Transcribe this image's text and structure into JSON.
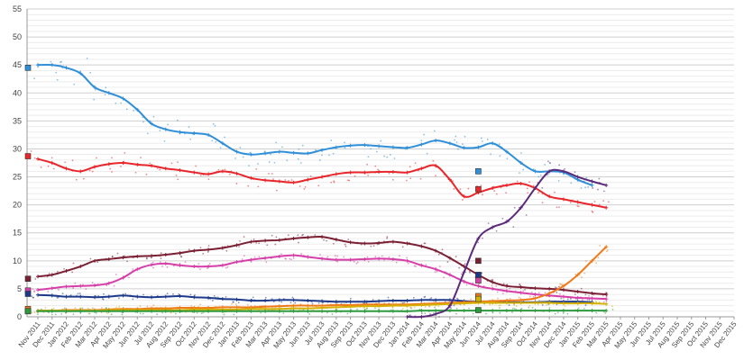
{
  "chart_data": {
    "type": "line",
    "y_ticks": [
      "0",
      "5",
      "10",
      "15",
      "20",
      "25",
      "30",
      "35",
      "40",
      "45",
      "50",
      "55"
    ],
    "ylim": [
      0,
      55
    ],
    "grid": true,
    "x_ticks": [
      "Nov 2011",
      "Dec 2011",
      "Jan 2012",
      "Feb 2012",
      "Mar 2012",
      "Apr 2012",
      "May 2012",
      "Jun 2012",
      "Jul 2012",
      "Aug 2012",
      "Sep 2012",
      "Oct 2012",
      "Nov 2012",
      "Dec 2012",
      "Jan 2013",
      "Feb 2013",
      "Mar 2013",
      "Apr 2013",
      "May 2013",
      "Jun 2013",
      "Jul 2013",
      "Aug 2013",
      "Sep 2013",
      "Oct 2013",
      "Nov 2013",
      "Dec 2013",
      "Jan 2014",
      "Feb 2014",
      "Mar 2014",
      "Apr 2014",
      "May 2014",
      "Jun 2014",
      "Jul 2014",
      "Aug 2014",
      "Sep 2014",
      "Oct 2014",
      "Nov 2014",
      "Dec 2014",
      "Jan 2015",
      "Feb 2015",
      "Mar 2015",
      "Apr 2015",
      "May 2015",
      "Jun 2015",
      "Jul 2015",
      "Aug 2015",
      "Sep 2015",
      "Oct 2015",
      "Nov 2015",
      "Dec 2015"
    ],
    "x_start_index": 0,
    "series": [
      {
        "color": "#2f8fd8",
        "values": [
          45,
          45,
          44.5,
          43.5,
          41,
          40,
          39,
          37,
          34.5,
          33.5,
          33,
          32.8,
          32.5,
          31,
          29.5,
          29,
          29.2,
          29.5,
          29.3,
          29.2,
          29.8,
          30.3,
          30.6,
          30.7,
          30.5,
          30.3,
          30.2,
          30.8,
          31.5,
          31,
          30.2,
          30.3,
          31,
          29.5,
          27.5,
          26,
          26,
          25.8,
          24.5,
          23.5
        ],
        "marker": 44.5,
        "marker2": [
          31,
          26
        ]
      },
      {
        "color": "#e8262b",
        "values": [
          28.2,
          27.5,
          26.5,
          26,
          26.8,
          27.3,
          27.5,
          27.2,
          27,
          26.5,
          26.2,
          25.8,
          25.5,
          26,
          25.6,
          24.8,
          24.4,
          24.2,
          24,
          24.5,
          25,
          25.5,
          25.8,
          25.8,
          25.9,
          25.9,
          25.8,
          26.5,
          27,
          24.5,
          21.5,
          22.2,
          23,
          23.5,
          23.8,
          23,
          21.5,
          21,
          20.5,
          20,
          19.5
        ],
        "marker": 28.7,
        "marker2": [
          31,
          22.8
        ]
      },
      {
        "color": "#7b1f34",
        "values": [
          7.2,
          7.5,
          8.2,
          9,
          10,
          10.3,
          10.6,
          10.8,
          10.9,
          11.1,
          11.4,
          11.8,
          12,
          12.3,
          12.8,
          13.4,
          13.6,
          13.7,
          14,
          14.2,
          14.3,
          13.8,
          13.3,
          13.1,
          13.2,
          13.4,
          13.1,
          12.6,
          11.8,
          10.5,
          9,
          7.5,
          6.2,
          5.5,
          5.3,
          5.1,
          5,
          4.8,
          4.5,
          4.2,
          4
        ],
        "marker": 6.8,
        "marker2": [
          31,
          10
        ]
      },
      {
        "color": "#d63fa8",
        "values": [
          4.8,
          5.1,
          5.4,
          5.5,
          5.6,
          6,
          7,
          8.5,
          9.3,
          9.5,
          9.2,
          9,
          9,
          9.2,
          9.8,
          10.2,
          10.5,
          10.8,
          11,
          10.7,
          10.4,
          10.2,
          10.2,
          10.3,
          10.4,
          10.3,
          10,
          9.2,
          8.5,
          7.5,
          6.3,
          5.5,
          5,
          4.6,
          4.3,
          4,
          3.8,
          3.6,
          3.4,
          3.3,
          3.2
        ],
        "marker": 4.7,
        "marker2": [
          31,
          6.5
        ]
      },
      {
        "color": "#1d3a8a",
        "values": [
          3.9,
          3.8,
          3.6,
          3.6,
          3.5,
          3.6,
          3.8,
          3.6,
          3.5,
          3.6,
          3.7,
          3.5,
          3.4,
          3.2,
          3.1,
          2.9,
          2.9,
          3,
          3,
          2.9,
          2.8,
          2.7,
          2.7,
          2.7,
          2.8,
          2.9,
          2.9,
          3,
          3,
          3,
          2.8,
          2.7,
          2.6,
          2.6,
          2.6,
          2.6,
          2.7,
          2.7,
          2.7,
          2.6
        ],
        "marker": 4.1,
        "marker2": [
          31,
          7.5
        ]
      },
      {
        "color": "#f07a1a",
        "values": [
          1.1,
          1.1,
          1.2,
          1.2,
          1.2,
          1.3,
          1.4,
          1.4,
          1.5,
          1.5,
          1.6,
          1.6,
          1.6,
          1.7,
          1.7,
          1.7,
          1.8,
          1.9,
          2,
          2,
          2,
          2.1,
          2.1,
          2.2,
          2.2,
          2.2,
          2.2,
          2.3,
          2.4,
          2.5,
          2.6,
          2.7,
          2.8,
          2.9,
          3,
          3.3,
          4.2,
          5.5,
          7.5,
          10,
          12.5
        ],
        "marker": 1.4,
        "marker2": [
          31,
          3.7
        ]
      },
      {
        "color": "#d4b000",
        "values": [
          1.1,
          1.1,
          1.1,
          1.1,
          1.1,
          1.2,
          1.2,
          1.2,
          1.2,
          1.2,
          1.2,
          1.3,
          1.3,
          1.3,
          1.3,
          1.4,
          1.4,
          1.4,
          1.5,
          1.5,
          1.6,
          1.7,
          1.8,
          1.9,
          1.9,
          2,
          2,
          2.1,
          2.2,
          2.3,
          2.4,
          2.5,
          2.5,
          2.5,
          2.5,
          2.5,
          2.5,
          2.4,
          2.4,
          2.4,
          2.3
        ],
        "marker": 1.0,
        "marker2": [
          31,
          3.2
        ]
      },
      {
        "color": "#2e9a3e",
        "values": [
          1.0,
          1.0,
          1.0,
          1.0,
          1.0,
          1.0,
          1.0,
          1.0,
          1.0,
          1.0,
          1.0,
          1.0,
          1.0,
          1.0,
          1.0,
          1.0,
          1.0,
          1.0,
          1.0,
          1.0,
          1.0,
          1.0,
          1.0,
          1.0,
          1.0,
          1.0,
          1.0,
          1.1,
          1.1,
          1.1,
          1.1,
          1.1,
          1.1,
          1.1,
          1.1,
          1.1,
          1.1,
          1.1,
          1.1,
          1.1,
          1.1
        ],
        "marker": 1.0,
        "marker2": [
          31,
          1.2
        ]
      },
      {
        "color": "#5c2a7a",
        "values": [
          null,
          null,
          null,
          null,
          null,
          null,
          null,
          null,
          null,
          null,
          null,
          null,
          null,
          null,
          null,
          null,
          null,
          null,
          null,
          null,
          null,
          null,
          null,
          null,
          null,
          null,
          0,
          0,
          0.5,
          2,
          8,
          14,
          16,
          17,
          19.5,
          23,
          26,
          26,
          25,
          24.2,
          23.5
        ],
        "marker": null,
        "marker2": null
      }
    ]
  }
}
